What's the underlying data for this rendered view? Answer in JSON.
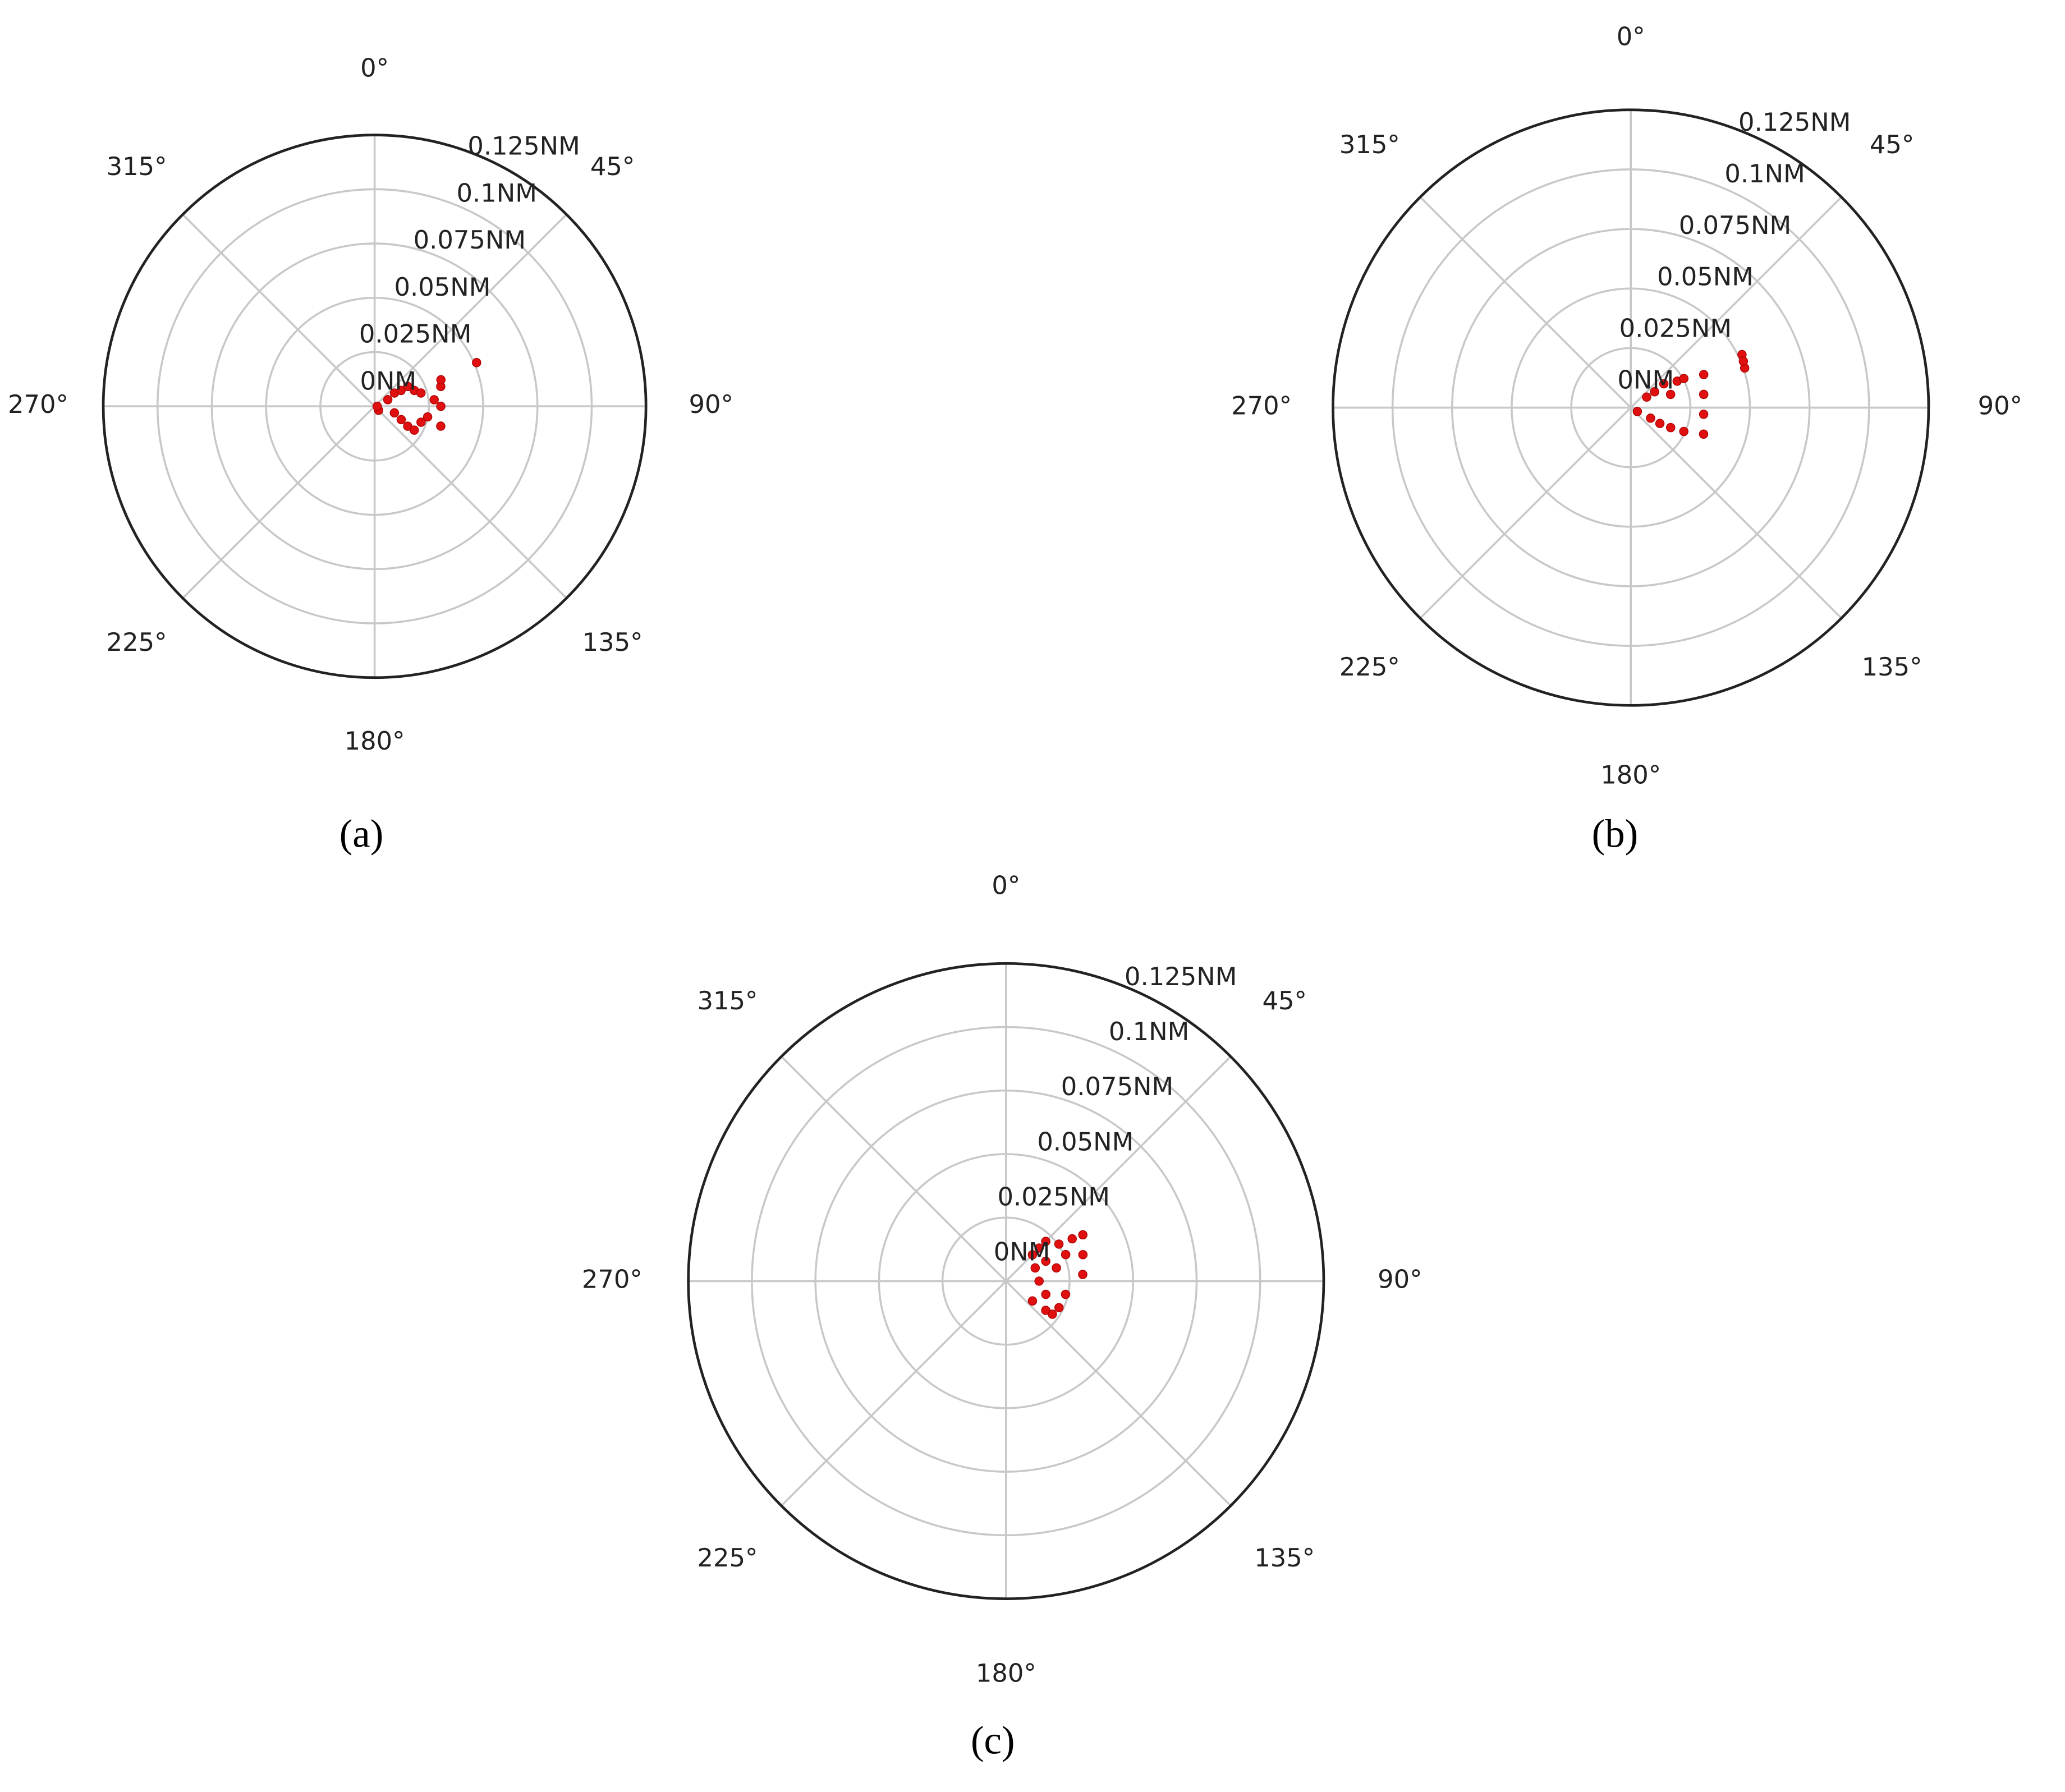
{
  "chart_data": [
    {
      "type": "scatter",
      "polar": true,
      "caption": "(a)",
      "rlim": [
        0,
        0.125
      ],
      "rticks": [
        {
          "value": 0,
          "label": "0NM"
        },
        {
          "value": 0.025,
          "label": "0.025NM"
        },
        {
          "value": 0.05,
          "label": "0.05NM"
        },
        {
          "value": 0.075,
          "label": "0.075NM"
        },
        {
          "value": 0.1,
          "label": "0.1NM"
        },
        {
          "value": 0.125,
          "label": "0.125NM"
        }
      ],
      "thetaticks": [
        {
          "value": 0,
          "label": "0°"
        },
        {
          "value": 45,
          "label": "45°"
        },
        {
          "value": 90,
          "label": "90°"
        },
        {
          "value": 135,
          "label": "135°"
        },
        {
          "value": 180,
          "label": "180°"
        },
        {
          "value": 225,
          "label": "225°"
        },
        {
          "value": 270,
          "label": "270°"
        },
        {
          "value": 315,
          "label": "315°"
        }
      ],
      "series": [
        {
          "color": "#e01010",
          "x": [
            135,
            63.4,
            56.3,
            59,
            59,
            68.2,
            74,
            108.4,
            116.6,
            121,
            121,
            108.9,
            101.3,
            83.7,
            73.3,
            68.2,
            90,
            106.7,
            66.8,
            90
          ],
          "values": [
            0.0026,
            0.0068,
            0.011,
            0.0142,
            0.0178,
            0.0197,
            0.0222,
            0.0096,
            0.0137,
            0.0178,
            0.0213,
            0.0226,
            0.0249,
            0.0276,
            0.0318,
            0.0329,
            0.0305,
            0.0318,
            0.0511,
            0.0012
          ]
        }
      ]
    },
    {
      "type": "scatter",
      "polar": true,
      "caption": "(b)",
      "rlim": [
        0,
        0.125
      ],
      "rticks": [
        {
          "value": 0,
          "label": "0NM"
        },
        {
          "value": 0.025,
          "label": "0.025NM"
        },
        {
          "value": 0.05,
          "label": "0.05NM"
        },
        {
          "value": 0.075,
          "label": "0.075NM"
        },
        {
          "value": 0.1,
          "label": "0.1NM"
        },
        {
          "value": 0.125,
          "label": "0.125NM"
        }
      ],
      "thetaticks": [
        {
          "value": 0,
          "label": "0°"
        },
        {
          "value": 45,
          "label": "45°"
        },
        {
          "value": 90,
          "label": "90°"
        },
        {
          "value": 135,
          "label": "135°"
        },
        {
          "value": 180,
          "label": "180°"
        },
        {
          "value": 225,
          "label": "225°"
        },
        {
          "value": 270,
          "label": "270°"
        },
        {
          "value": 315,
          "label": "315°"
        }
      ],
      "series": [
        {
          "color": "#e01010",
          "x": [
            121,
            56.3,
            56.3,
            54.2,
            71.6,
            60.3,
            61.2,
            118,
            118.6,
            116.6,
            114.2,
            65.6,
            79.7,
            95.2,
            110,
            64.5,
            70.8,
            67.6
          ],
          "values": [
            0.0032,
            0.008,
            0.012,
            0.0171,
            0.0176,
            0.0224,
            0.0254,
            0.0094,
            0.0139,
            0.0187,
            0.0244,
            0.0336,
            0.0311,
            0.0307,
            0.0325,
            0.0517,
            0.0506,
            0.0511
          ]
        }
      ]
    },
    {
      "type": "scatter",
      "polar": true,
      "caption": "(c)",
      "rlim": [
        0,
        0.125
      ],
      "rticks": [
        {
          "value": 0,
          "label": "0NM"
        },
        {
          "value": 0.025,
          "label": "0.025NM"
        },
        {
          "value": 0.05,
          "label": "0.05NM"
        },
        {
          "value": 0.075,
          "label": "0.075NM"
        },
        {
          "value": 0.1,
          "label": "0.1NM"
        },
        {
          "value": 0.125,
          "label": "0.125NM"
        }
      ],
      "thetaticks": [
        {
          "value": 0,
          "label": "0°"
        },
        {
          "value": 45,
          "label": "45°"
        },
        {
          "value": 90,
          "label": "90°"
        },
        {
          "value": 135,
          "label": "135°"
        },
        {
          "value": 180,
          "label": "180°"
        },
        {
          "value": 225,
          "label": "225°"
        },
        {
          "value": 270,
          "label": "270°"
        },
        {
          "value": 315,
          "label": "315°"
        }
      ],
      "series": [
        {
          "color": "#e01010",
          "x": [
            45,
            45,
            45,
            55,
            57.4,
            58.9,
            71,
            85,
            90,
            108.4,
            126.3,
            116.6,
            102.5,
            75.3,
            63.4,
            65.6,
            126.9,
            125.5,
            66
          ],
          "values": [
            0.0147,
            0.0184,
            0.0221,
            0.0254,
            0.0309,
            0.0353,
            0.032,
            0.0303,
            0.013,
            0.0165,
            0.0194,
            0.0233,
            0.024,
            0.0205,
            0.0175,
            0.0126,
            0.013,
            0.0224,
            0.0257
          ]
        }
      ]
    }
  ]
}
